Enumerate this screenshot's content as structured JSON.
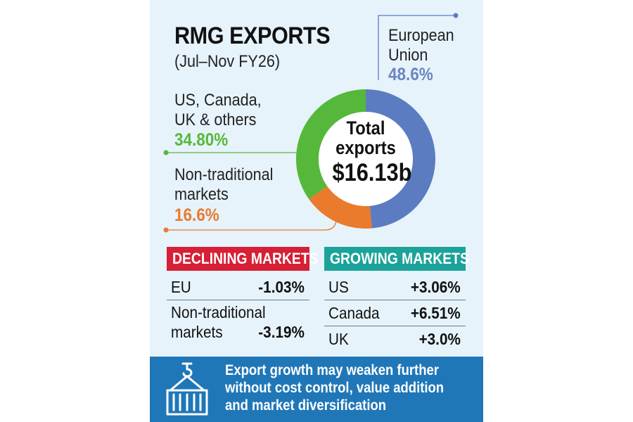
{
  "title": "RMG EXPORTS",
  "subtitle": "(Jul–Nov FY26)",
  "center": {
    "line1": "Total",
    "line2": "exports",
    "total": "$16.13b"
  },
  "chart_data": {
    "type": "pie",
    "title": "RMG EXPORTS",
    "subtitle": "(Jul–Nov FY26)",
    "slices": [
      {
        "label_lines": [
          "European",
          "Union"
        ],
        "value": 48.6,
        "value_label": "48.6%",
        "color": "#5b7cc0"
      },
      {
        "label_lines": [
          "Non-traditional",
          "markets"
        ],
        "value": 16.6,
        "value_label": "16.6%",
        "color": "#ea7a2c"
      },
      {
        "label_lines": [
          "US, Canada,",
          "UK & others"
        ],
        "value": 34.8,
        "value_label": "34.80%",
        "color": "#56b83a"
      }
    ],
    "center_label": "Total exports $16.13b"
  },
  "declining": {
    "heading": "DECLINING MARKETS",
    "color": "#d71f36",
    "rows": [
      {
        "name": "EU",
        "value": "-1.03%"
      },
      {
        "name_line1": "Non-traditional",
        "name_line2": "markets",
        "value": "-3.19%"
      }
    ]
  },
  "growing": {
    "heading": "GROWING MARKETS",
    "color": "#1ba39a",
    "rows": [
      {
        "name": "US",
        "value": "+3.06%"
      },
      {
        "name": "Canada",
        "value": "+6.51%"
      },
      {
        "name": "UK",
        "value": "+3.0%"
      }
    ]
  },
  "note": {
    "icon": "shipping-container-crane-icon",
    "text": "Export growth may weaken further without cost control, value addition and market diversification"
  },
  "colors": {
    "background": "#e6f3fb",
    "banner": "#1f77b8"
  }
}
